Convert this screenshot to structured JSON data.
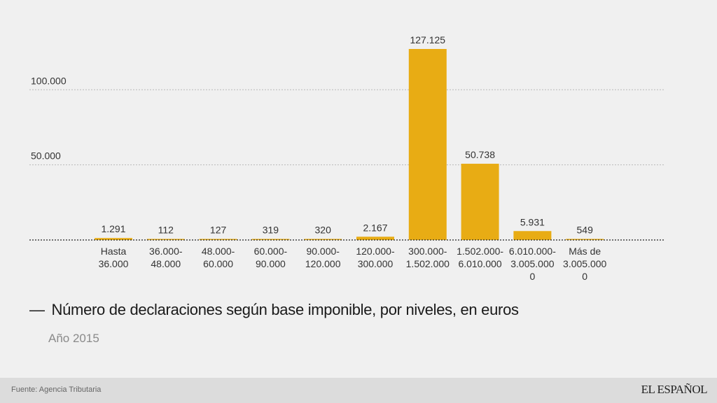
{
  "chart_data": {
    "type": "bar",
    "title": "Número de declaraciones según base imponible, por niveles, en euros",
    "subtitle": "Año 2015",
    "categories": [
      [
        "Hasta",
        "36.000"
      ],
      [
        "36.000-",
        "48.000"
      ],
      [
        "48.000-",
        "60.000"
      ],
      [
        "60.000-",
        "90.000"
      ],
      [
        "90.000-",
        "120.000"
      ],
      [
        "120.000-",
        "300.000"
      ],
      [
        "300.000-",
        "1.502.000"
      ],
      [
        "1.502.000-",
        "6.010.000"
      ],
      [
        "6.010.000-",
        "3.005.000",
        "0"
      ],
      [
        "Más de",
        "3.005.000",
        "0"
      ]
    ],
    "values": [
      1291,
      112,
      127,
      319,
      320,
      2167,
      127125,
      50738,
      5931,
      549
    ],
    "value_labels": [
      "1.291",
      "112",
      "127",
      "319",
      "320",
      "2.167",
      "127.125",
      "50.738",
      "5.931",
      "549"
    ],
    "yticks": [
      {
        "value": 50000,
        "label": "50.000"
      },
      {
        "value": 100000,
        "label": "100.000"
      }
    ],
    "ylim": [
      0,
      127125
    ],
    "bar_color": "#e8ac14",
    "grid": true
  },
  "title": "Número de declaraciones según base imponible, por niveles, en euros",
  "title_dash": "—",
  "subtitle": "Año 2015",
  "footer": {
    "source": "Fuente: Agencia Tributaria",
    "brand": "EL ESPAÑOL"
  }
}
